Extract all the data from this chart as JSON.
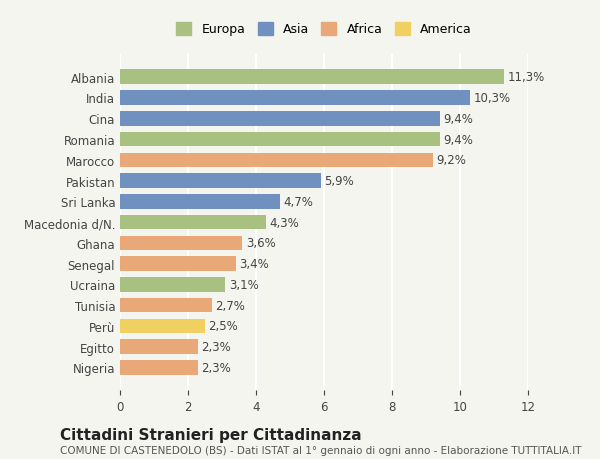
{
  "categories": [
    "Albania",
    "India",
    "Cina",
    "Romania",
    "Marocco",
    "Pakistan",
    "Sri Lanka",
    "Macedonia d/N.",
    "Ghana",
    "Senegal",
    "Ucraina",
    "Tunisia",
    "Perù",
    "Egitto",
    "Nigeria"
  ],
  "values": [
    11.3,
    10.3,
    9.4,
    9.4,
    9.2,
    5.9,
    4.7,
    4.3,
    3.6,
    3.4,
    3.1,
    2.7,
    2.5,
    2.3,
    2.3
  ],
  "labels": [
    "11,3%",
    "10,3%",
    "9,4%",
    "9,4%",
    "9,2%",
    "5,9%",
    "4,7%",
    "4,3%",
    "3,6%",
    "3,4%",
    "3,1%",
    "2,7%",
    "2,5%",
    "2,3%",
    "2,3%"
  ],
  "continents": [
    "Europa",
    "Asia",
    "Asia",
    "Europa",
    "Africa",
    "Asia",
    "Asia",
    "Europa",
    "Africa",
    "Africa",
    "Europa",
    "Africa",
    "America",
    "Africa",
    "Africa"
  ],
  "continent_colors": {
    "Europa": "#a8c080",
    "Asia": "#7090c0",
    "Africa": "#e8a878",
    "America": "#f0d060"
  },
  "legend_order": [
    "Europa",
    "Asia",
    "Africa",
    "America"
  ],
  "title": "Cittadini Stranieri per Cittadinanza",
  "subtitle": "COMUNE DI CASTENEDOLO (BS) - Dati ISTAT al 1° gennaio di ogni anno - Elaborazione TUTTITALIA.IT",
  "xlim": [
    0,
    12
  ],
  "xticks": [
    0,
    2,
    4,
    6,
    8,
    10,
    12
  ],
  "background_color": "#f5f5f0",
  "grid_color": "#ffffff",
  "bar_height": 0.7,
  "label_fontsize": 8.5,
  "tick_fontsize": 8.5,
  "title_fontsize": 11,
  "subtitle_fontsize": 7.5
}
